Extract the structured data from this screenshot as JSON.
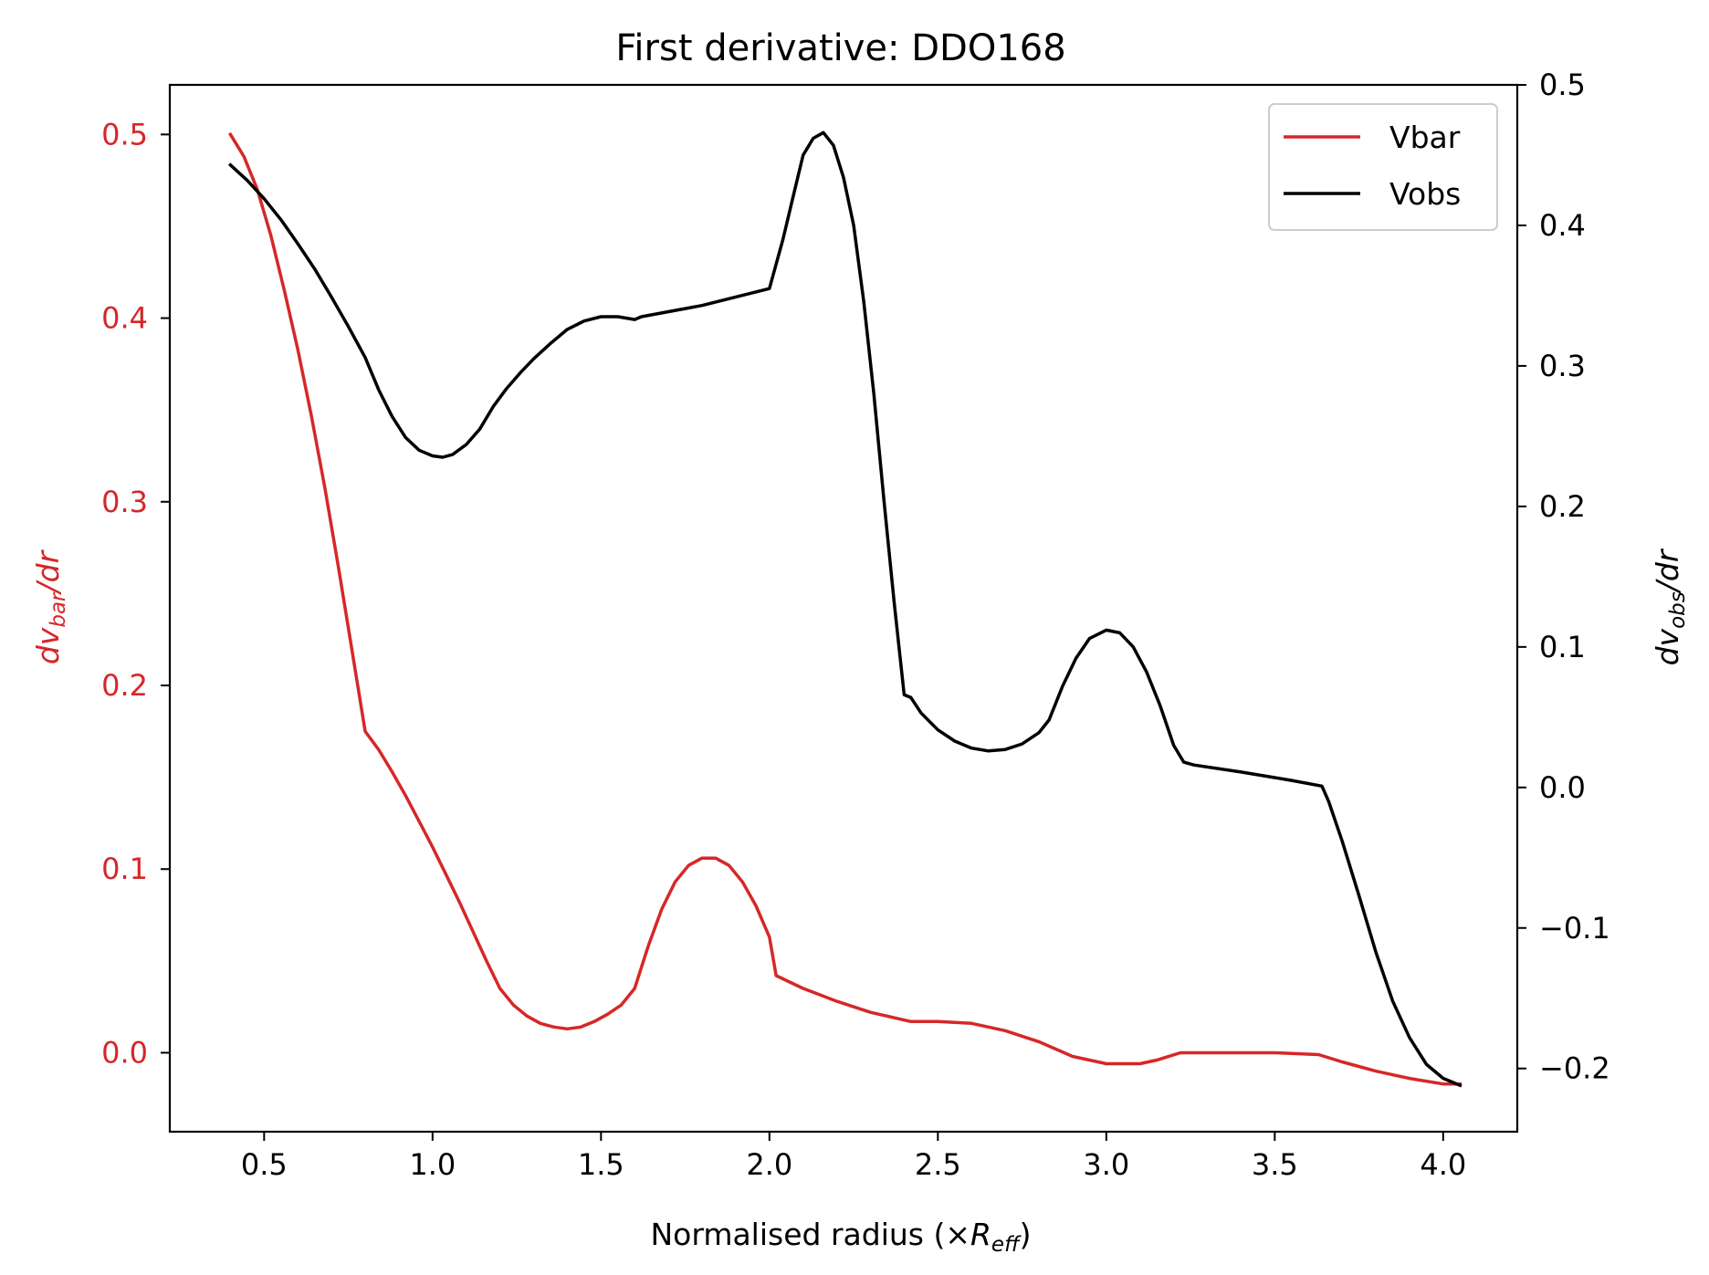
{
  "chart_data": {
    "type": "line",
    "title": "First derivative: DDO168",
    "xlabel": {
      "prefix": "Normalised radius (×",
      "symbol": "R",
      "subscript": "eff",
      "suffix": ")"
    },
    "ylabel_left": {
      "prefix": "dv",
      "subscript": "bar",
      "suffix": "/dr"
    },
    "ylabel_right": {
      "prefix": "dv",
      "subscript": "obs",
      "suffix": "/dr"
    },
    "xlim": [
      0.22,
      4.22
    ],
    "ylim_left": [
      -0.043,
      0.527
    ],
    "ylim_right": [
      -0.245,
      0.5
    ],
    "xticks": [
      0.5,
      1.0,
      1.5,
      2.0,
      2.5,
      3.0,
      3.5,
      4.0
    ],
    "xtick_labels": [
      "0.5",
      "1.0",
      "1.5",
      "2.0",
      "2.5",
      "3.0",
      "3.5",
      "4.0"
    ],
    "yticks_left": [
      0.0,
      0.1,
      0.2,
      0.3,
      0.4,
      0.5
    ],
    "ytick_labels_left": [
      "0.0",
      "0.1",
      "0.2",
      "0.3",
      "0.4",
      "0.5"
    ],
    "yticks_right": [
      -0.2,
      -0.1,
      0.0,
      0.1,
      0.2,
      0.3,
      0.4,
      0.5
    ],
    "ytick_labels_right": [
      "−0.2",
      "−0.1",
      "0.0",
      "0.1",
      "0.2",
      "0.3",
      "0.4",
      "0.5"
    ],
    "left_axis_color": "#d62728",
    "right_axis_color": "#000000",
    "grid": false,
    "legend_position": "top-right",
    "series": [
      {
        "name": "Vbar",
        "axis": "left",
        "color": "#d62728",
        "x": [
          0.4,
          0.44,
          0.48,
          0.52,
          0.56,
          0.6,
          0.64,
          0.68,
          0.72,
          0.76,
          0.8,
          0.84,
          0.88,
          0.92,
          0.96,
          1.0,
          1.04,
          1.08,
          1.12,
          1.16,
          1.2,
          1.24,
          1.28,
          1.32,
          1.36,
          1.4,
          1.44,
          1.48,
          1.52,
          1.56,
          1.6,
          1.64,
          1.68,
          1.72,
          1.76,
          1.8,
          1.84,
          1.88,
          1.92,
          1.96,
          2.0,
          2.02,
          2.1,
          2.2,
          2.3,
          2.42,
          2.5,
          2.6,
          2.7,
          2.8,
          2.9,
          3.0,
          3.1,
          3.15,
          3.22,
          3.3,
          3.4,
          3.5,
          3.63,
          3.7,
          3.8,
          3.9,
          4.0,
          4.05
        ],
        "y": [
          0.5,
          0.488,
          0.47,
          0.445,
          0.415,
          0.383,
          0.347,
          0.308,
          0.265,
          0.22,
          0.175,
          0.165,
          0.153,
          0.14,
          0.126,
          0.112,
          0.097,
          0.082,
          0.066,
          0.05,
          0.035,
          0.026,
          0.02,
          0.016,
          0.014,
          0.013,
          0.014,
          0.017,
          0.021,
          0.026,
          0.035,
          0.058,
          0.078,
          0.093,
          0.102,
          0.106,
          0.106,
          0.102,
          0.093,
          0.08,
          0.063,
          0.042,
          0.035,
          0.028,
          0.022,
          0.017,
          0.017,
          0.016,
          0.012,
          0.006,
          -0.002,
          -0.006,
          -0.006,
          -0.004,
          0.0,
          0.0,
          0.0,
          0.0,
          -0.001,
          -0.005,
          -0.01,
          -0.014,
          -0.017,
          -0.017
        ]
      },
      {
        "name": "Vobs",
        "axis": "right",
        "color": "#000000",
        "x": [
          0.4,
          0.45,
          0.5,
          0.55,
          0.6,
          0.65,
          0.7,
          0.75,
          0.8,
          0.84,
          0.88,
          0.92,
          0.96,
          1.0,
          1.03,
          1.06,
          1.1,
          1.14,
          1.18,
          1.22,
          1.26,
          1.3,
          1.35,
          1.4,
          1.45,
          1.5,
          1.55,
          1.6,
          1.62,
          1.8,
          2.0,
          2.04,
          2.07,
          2.1,
          2.13,
          2.16,
          2.19,
          2.22,
          2.25,
          2.28,
          2.31,
          2.34,
          2.37,
          2.4,
          2.42,
          2.45,
          2.5,
          2.55,
          2.6,
          2.65,
          2.7,
          2.75,
          2.8,
          2.83,
          2.87,
          2.91,
          2.95,
          3.0,
          3.04,
          3.08,
          3.12,
          3.16,
          3.2,
          3.23,
          3.26,
          3.4,
          3.55,
          3.64,
          3.66,
          3.7,
          3.75,
          3.8,
          3.85,
          3.9,
          3.95,
          4.0,
          4.05
        ],
        "y": [
          0.443,
          0.432,
          0.419,
          0.404,
          0.387,
          0.369,
          0.349,
          0.328,
          0.306,
          0.283,
          0.264,
          0.249,
          0.24,
          0.236,
          0.235,
          0.237,
          0.244,
          0.255,
          0.271,
          0.284,
          0.295,
          0.305,
          0.316,
          0.326,
          0.332,
          0.335,
          0.335,
          0.333,
          0.335,
          0.343,
          0.355,
          0.39,
          0.42,
          0.45,
          0.462,
          0.466,
          0.457,
          0.434,
          0.4,
          0.346,
          0.28,
          0.204,
          0.132,
          0.066,
          0.064,
          0.053,
          0.041,
          0.033,
          0.028,
          0.026,
          0.027,
          0.031,
          0.039,
          0.048,
          0.072,
          0.092,
          0.106,
          0.112,
          0.11,
          0.1,
          0.082,
          0.058,
          0.03,
          0.018,
          0.016,
          0.011,
          0.005,
          0.001,
          -0.01,
          -0.038,
          -0.077,
          -0.117,
          -0.152,
          -0.178,
          -0.197,
          -0.207,
          -0.212
        ]
      }
    ]
  }
}
